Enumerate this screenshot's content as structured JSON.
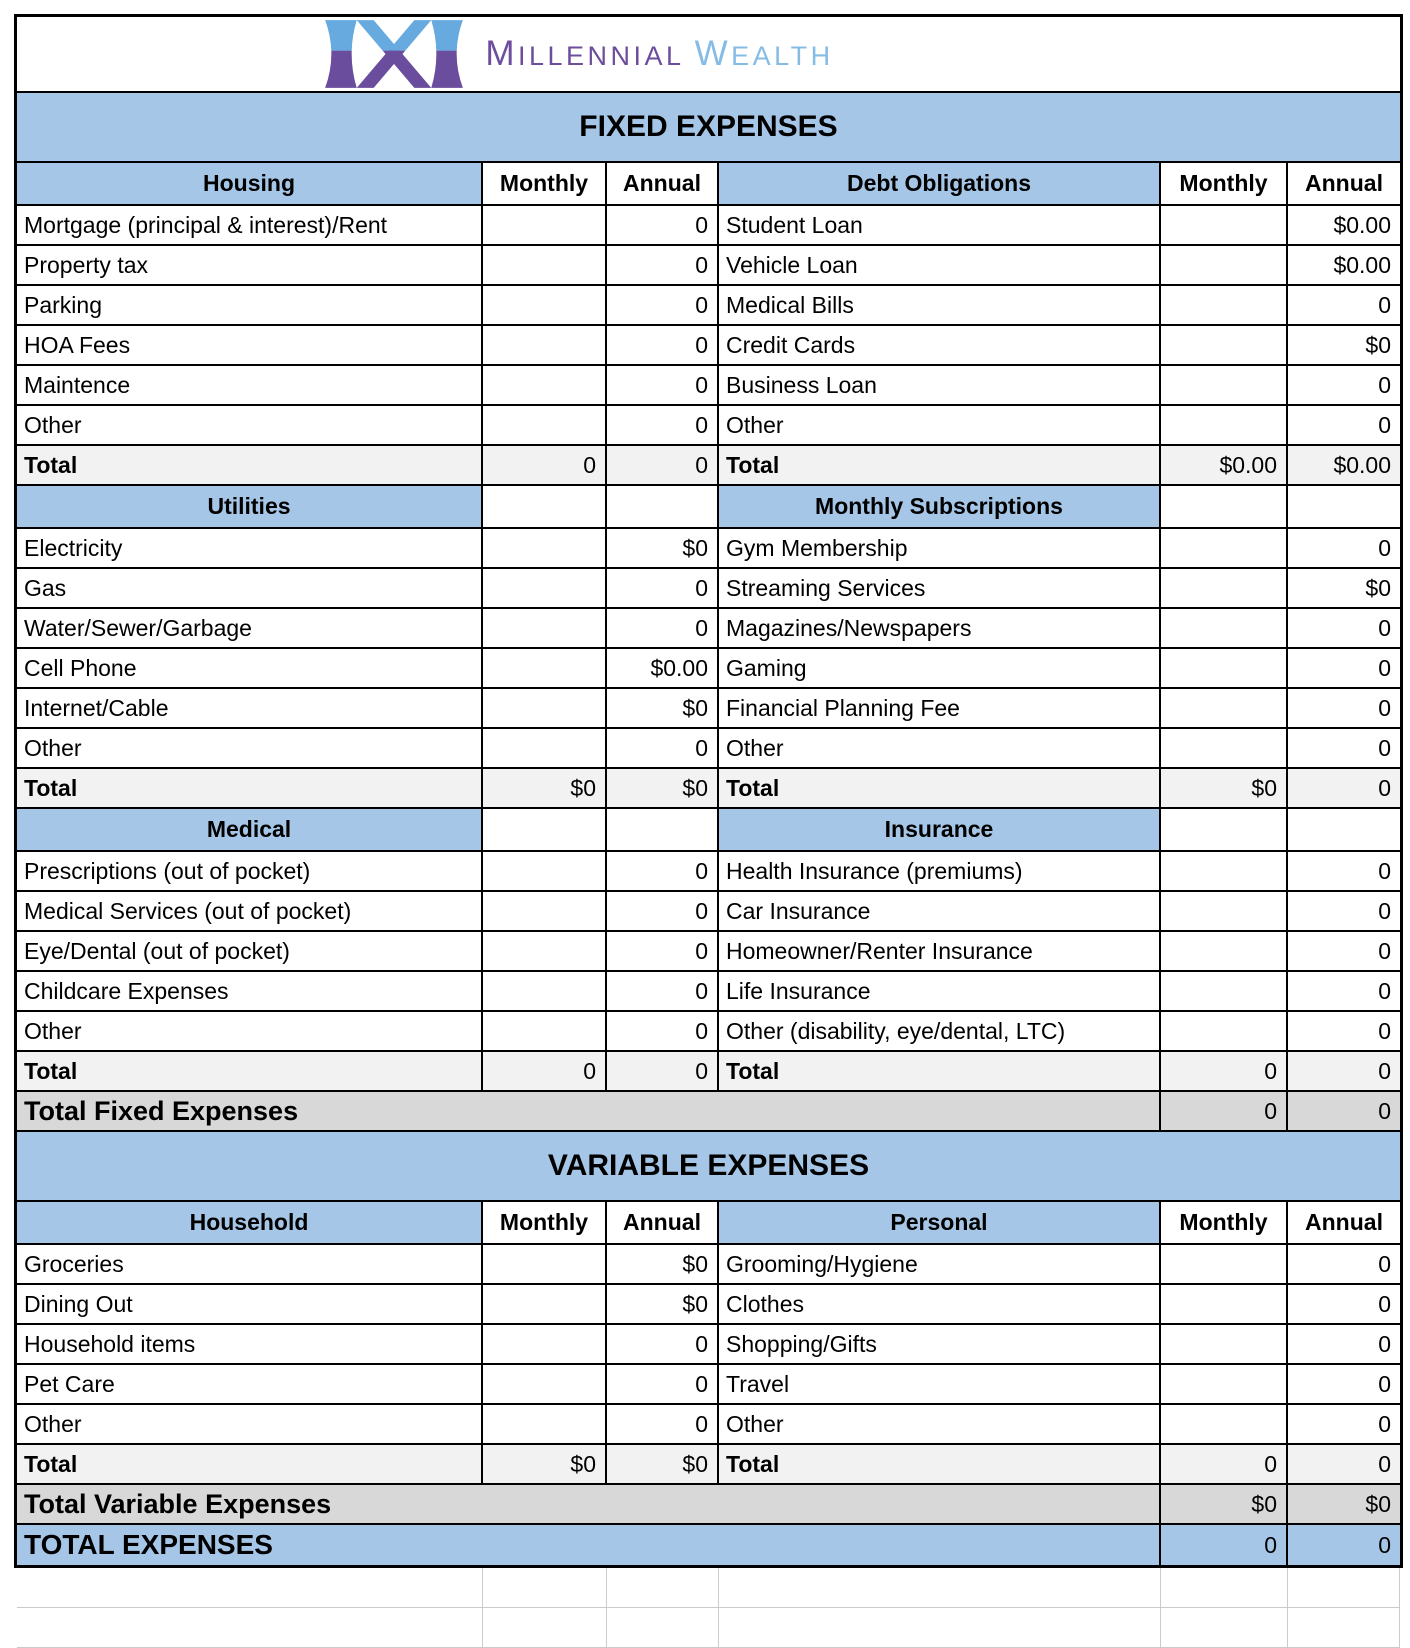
{
  "labels": {
    "monthly": "Monthly",
    "annual": "Annual",
    "total": "Total"
  },
  "logo": {
    "word1": "MILLENNIAL",
    "word2": "WEALTH"
  },
  "colors": {
    "header_blue": "#a5c6e7",
    "section_total_gray": "#f2f2f2",
    "grand_total_gray": "#d8d8d8",
    "grid_border_black": "#000000",
    "empty_gridline_gray": "#cbcbcb",
    "logo_purple": "#6c4e9c",
    "logo_blue": "#85bce6"
  },
  "fixed": {
    "banner": "FIXED EXPENSES",
    "groups": [
      {
        "left": {
          "title": "Housing",
          "rows": [
            {
              "label": "Mortgage (principal & interest)/Rent",
              "monthly": "",
              "annual": "0"
            },
            {
              "label": "Property tax",
              "monthly": "",
              "annual": "0"
            },
            {
              "label": "Parking",
              "monthly": "",
              "annual": "0"
            },
            {
              "label": "HOA Fees",
              "monthly": "",
              "annual": "0"
            },
            {
              "label": "Maintence",
              "monthly": "",
              "annual": "0"
            },
            {
              "label": "Other",
              "monthly": "",
              "annual": "0"
            }
          ],
          "total": {
            "monthly": "0",
            "annual": "0"
          }
        },
        "right": {
          "title": "Debt Obligations",
          "rows": [
            {
              "label": "Student Loan",
              "monthly": "",
              "annual": "$0.00"
            },
            {
              "label": "Vehicle Loan",
              "monthly": "",
              "annual": "$0.00"
            },
            {
              "label": "Medical Bills",
              "monthly": "",
              "annual": "0"
            },
            {
              "label": "Credit Cards",
              "monthly": "",
              "annual": "$0"
            },
            {
              "label": "Business Loan",
              "monthly": "",
              "annual": "0"
            },
            {
              "label": "Other",
              "monthly": "",
              "annual": "0"
            }
          ],
          "total": {
            "monthly": "$0.00",
            "annual": "$0.00"
          }
        }
      },
      {
        "left": {
          "title": "Utilities",
          "rows": [
            {
              "label": "Electricity",
              "monthly": "",
              "annual": "$0"
            },
            {
              "label": "Gas",
              "monthly": "",
              "annual": "0"
            },
            {
              "label": "Water/Sewer/Garbage",
              "monthly": "",
              "annual": "0"
            },
            {
              "label": "Cell Phone",
              "monthly": "",
              "annual": "$0.00"
            },
            {
              "label": "Internet/Cable",
              "monthly": "",
              "annual": "$0"
            },
            {
              "label": "Other",
              "monthly": "",
              "annual": "0"
            }
          ],
          "total": {
            "monthly": "$0",
            "annual": "$0"
          }
        },
        "right": {
          "title": "Monthly Subscriptions",
          "rows": [
            {
              "label": "Gym Membership",
              "monthly": "",
              "annual": "0"
            },
            {
              "label": "Streaming Services",
              "monthly": "",
              "annual": "$0"
            },
            {
              "label": "Magazines/Newspapers",
              "monthly": "",
              "annual": "0"
            },
            {
              "label": "Gaming",
              "monthly": "",
              "annual": "0"
            },
            {
              "label": "Financial Planning Fee",
              "monthly": "",
              "annual": "0"
            },
            {
              "label": "Other",
              "monthly": "",
              "annual": "0"
            }
          ],
          "total": {
            "monthly": "$0",
            "annual": "0"
          }
        }
      },
      {
        "left": {
          "title": "Medical",
          "rows": [
            {
              "label": "Prescriptions (out of pocket)",
              "monthly": "",
              "annual": "0"
            },
            {
              "label": "Medical Services (out of pocket)",
              "monthly": "",
              "annual": "0"
            },
            {
              "label": "Eye/Dental (out of pocket)",
              "monthly": "",
              "annual": "0"
            },
            {
              "label": "Childcare Expenses",
              "monthly": "",
              "annual": "0"
            },
            {
              "label": "Other",
              "monthly": "",
              "annual": "0"
            }
          ],
          "total": {
            "monthly": "0",
            "annual": "0"
          }
        },
        "right": {
          "title": "Insurance",
          "rows": [
            {
              "label": "Health Insurance (premiums)",
              "monthly": "",
              "annual": "0"
            },
            {
              "label": "Car Insurance",
              "monthly": "",
              "annual": "0"
            },
            {
              "label": "Homeowner/Renter Insurance",
              "monthly": "",
              "annual": "0"
            },
            {
              "label": "Life Insurance",
              "monthly": "",
              "annual": "0"
            },
            {
              "label": "Other (disability, eye/dental, LTC)",
              "monthly": "",
              "annual": "0"
            }
          ],
          "total": {
            "monthly": "0",
            "annual": "0"
          }
        }
      }
    ],
    "grand_total": {
      "label": "Total Fixed Expenses",
      "monthly": "0",
      "annual": "0"
    }
  },
  "variable": {
    "banner": "VARIABLE EXPENSES",
    "groups": [
      {
        "left": {
          "title": "Household",
          "rows": [
            {
              "label": "Groceries",
              "monthly": "",
              "annual": "$0"
            },
            {
              "label": "Dining Out",
              "monthly": "",
              "annual": "$0"
            },
            {
              "label": "Household items",
              "monthly": "",
              "annual": "0"
            },
            {
              "label": "Pet Care",
              "monthly": "",
              "annual": "0"
            },
            {
              "label": "Other",
              "monthly": "",
              "annual": "0"
            }
          ],
          "total": {
            "monthly": "$0",
            "annual": "$0"
          }
        },
        "right": {
          "title": "Personal",
          "rows": [
            {
              "label": "Grooming/Hygiene",
              "monthly": "",
              "annual": "0"
            },
            {
              "label": "Clothes",
              "monthly": "",
              "annual": "0"
            },
            {
              "label": "Shopping/Gifts",
              "monthly": "",
              "annual": "0"
            },
            {
              "label": "Travel",
              "monthly": "",
              "annual": "0"
            },
            {
              "label": "Other",
              "monthly": "",
              "annual": "0"
            }
          ],
          "total": {
            "monthly": "0",
            "annual": "0"
          }
        }
      }
    ],
    "grand_total": {
      "label": "Total Variable Expenses",
      "monthly": "$0",
      "annual": "$0"
    }
  },
  "total_expenses": {
    "label": "TOTAL EXPENSES",
    "monthly": "0",
    "annual": "0"
  }
}
